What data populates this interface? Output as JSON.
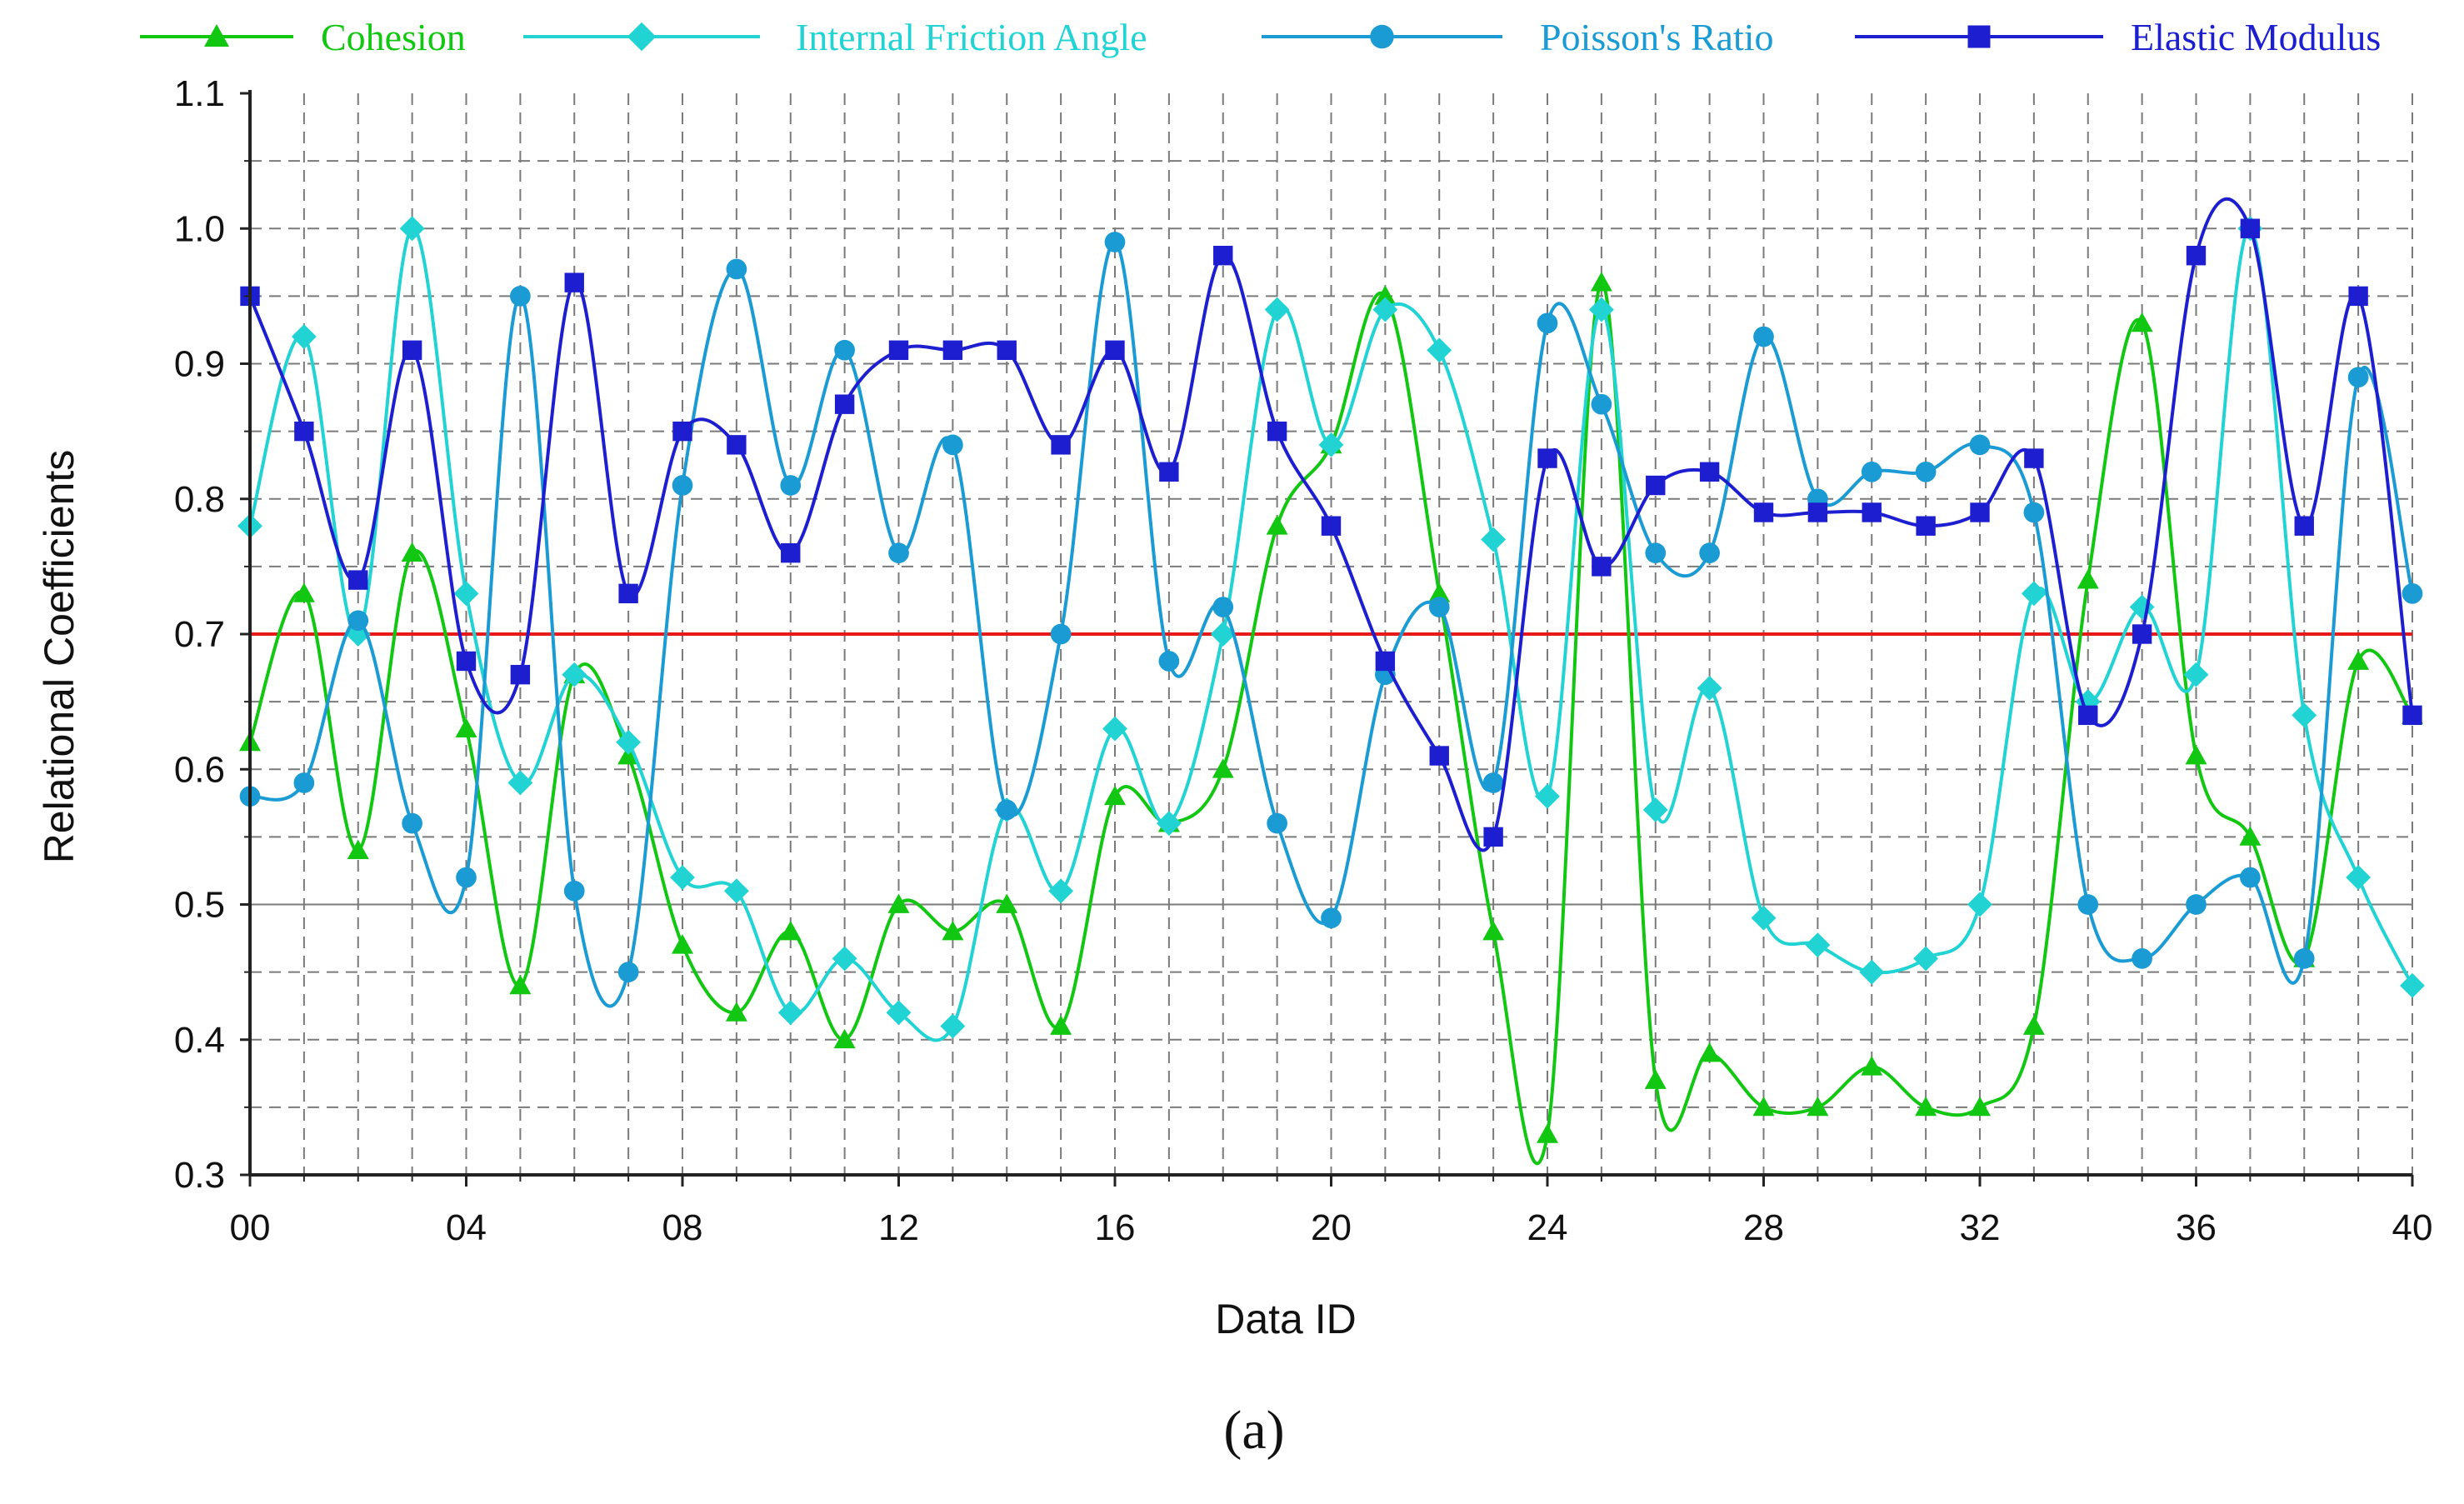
{
  "chart_data": {
    "type": "line",
    "title": "",
    "xlabel": "Data ID",
    "ylabel": "Relational Coefficients",
    "caption": "(a)",
    "xlim": [
      0,
      40
    ],
    "ylim": [
      0.3,
      1.1
    ],
    "x_tick_labels": [
      "00",
      "04",
      "08",
      "12",
      "16",
      "20",
      "24",
      "28",
      "32",
      "36",
      "40"
    ],
    "y_tick_labels": [
      "0.3",
      "0.4",
      "0.5",
      "0.6",
      "0.7",
      "0.8",
      "0.9",
      "1.0",
      "1.1"
    ],
    "threshold": 0.7,
    "threshold_color": "#e8191b",
    "grid": true,
    "legend_position": "top",
    "series": [
      {
        "name": "Cohesion",
        "color": "#12c712",
        "marker": "triangle",
        "values": [
          0.62,
          0.73,
          0.54,
          0.76,
          0.63,
          0.44,
          0.67,
          0.61,
          0.47,
          0.42,
          0.48,
          0.4,
          0.5,
          0.48,
          0.5,
          0.41,
          0.58,
          0.56,
          0.6,
          0.78,
          0.84,
          0.95,
          0.73,
          0.48,
          0.33,
          0.96,
          0.37,
          0.39,
          0.35,
          0.35,
          0.38,
          0.35,
          0.35,
          0.41,
          0.74,
          0.93,
          0.61,
          0.55,
          0.46,
          0.68,
          0.64
        ]
      },
      {
        "name": "Internal Friction Angle",
        "color": "#22d3d3",
        "marker": "diamond",
        "values": [
          0.78,
          0.92,
          0.7,
          1.0,
          0.73,
          0.59,
          0.67,
          0.62,
          0.52,
          0.51,
          0.42,
          0.46,
          0.42,
          0.41,
          0.57,
          0.51,
          0.63,
          0.56,
          0.7,
          0.94,
          0.84,
          0.94,
          0.91,
          0.77,
          0.58,
          0.94,
          0.57,
          0.66,
          0.49,
          0.47,
          0.45,
          0.46,
          0.5,
          0.73,
          0.65,
          0.72,
          0.67,
          1.0,
          0.64,
          0.52,
          0.44
        ]
      },
      {
        "name": "Poisson's Ratio",
        "color": "#1a9bd4",
        "marker": "circle",
        "values": [
          0.58,
          0.59,
          0.71,
          0.56,
          0.52,
          0.95,
          0.51,
          0.45,
          0.81,
          0.97,
          0.81,
          0.91,
          0.76,
          0.84,
          0.57,
          0.7,
          0.99,
          0.68,
          0.72,
          0.56,
          0.49,
          0.67,
          0.72,
          0.59,
          0.93,
          0.87,
          0.76,
          0.76,
          0.92,
          0.8,
          0.82,
          0.82,
          0.84,
          0.79,
          0.5,
          0.46,
          0.5,
          0.52,
          0.46,
          0.89,
          0.73
        ]
      },
      {
        "name": "Elastic Modulus",
        "color": "#1c1ecf",
        "marker": "square",
        "values": [
          0.95,
          0.85,
          0.74,
          0.91,
          0.68,
          0.67,
          0.96,
          0.73,
          0.85,
          0.84,
          0.76,
          0.87,
          0.91,
          0.91,
          0.91,
          0.84,
          0.91,
          0.82,
          0.98,
          0.85,
          0.78,
          0.68,
          0.61,
          0.55,
          0.83,
          0.75,
          0.81,
          0.82,
          0.79,
          0.79,
          0.79,
          0.78,
          0.79,
          0.83,
          0.64,
          0.7,
          0.98,
          1.0,
          0.78,
          0.95,
          0.64
        ]
      }
    ]
  }
}
